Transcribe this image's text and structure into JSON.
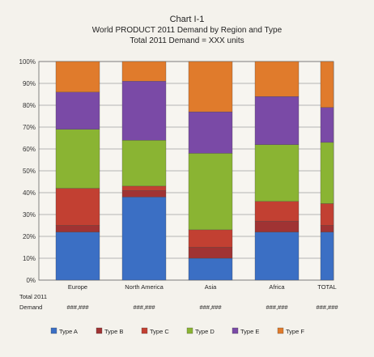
{
  "chart_data": {
    "type": "bar",
    "stacked": true,
    "percent": true,
    "title": "Chart I-1",
    "subtitle_1": "World PRODUCT 2011 Demand by Region and Type",
    "subtitle_2": "Total 2011 Demand = XXX units",
    "ylim": [
      0,
      100
    ],
    "y_ticks": [
      "0%",
      "10%",
      "20%",
      "30%",
      "40%",
      "50%",
      "60%",
      "70%",
      "80%",
      "90%",
      "100%"
    ],
    "categories": [
      "Europe",
      "North America",
      "Asia",
      "Africa",
      "TOTAL"
    ],
    "row_header_1": "Total 2011",
    "row_header_2": "Demand",
    "totals": [
      "###,###",
      "###,###",
      "###,###",
      "###,###",
      "###,###"
    ],
    "series": [
      {
        "name": "Type A",
        "values": [
          22,
          38,
          10,
          22,
          22
        ],
        "color": "#3b6fc4"
      },
      {
        "name": "Type B",
        "values": [
          3,
          3,
          5,
          5,
          3
        ],
        "color": "#a03333"
      },
      {
        "name": "Type C",
        "values": [
          17,
          2,
          8,
          9,
          10
        ],
        "color": "#c24032"
      },
      {
        "name": "Type D",
        "values": [
          27,
          21,
          35,
          26,
          28
        ],
        "color": "#8ab433"
      },
      {
        "name": "Type E",
        "values": [
          17,
          27,
          19,
          22,
          16
        ],
        "color": "#7a4aa6"
      },
      {
        "name": "Type F",
        "values": [
          14,
          9,
          23,
          16,
          21
        ],
        "color": "#e07b2c"
      }
    ],
    "legend_position": "bottom",
    "grid": true
  }
}
